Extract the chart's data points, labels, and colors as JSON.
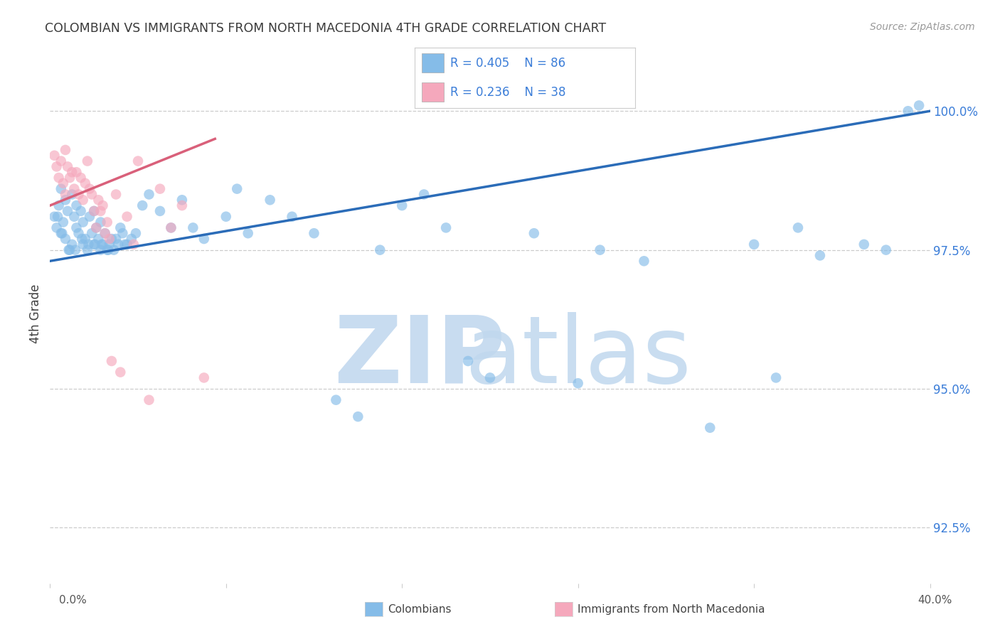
{
  "title": "COLOMBIAN VS IMMIGRANTS FROM NORTH MACEDONIA 4TH GRADE CORRELATION CHART",
  "source": "Source: ZipAtlas.com",
  "ylabel": "4th Grade",
  "ytick_values": [
    100.0,
    97.5,
    95.0,
    92.5
  ],
  "xlim": [
    0.0,
    40.0
  ],
  "ylim": [
    91.5,
    101.2
  ],
  "blue_r": 0.405,
  "blue_n": 86,
  "pink_r": 0.236,
  "pink_n": 38,
  "blue_color": "#85BCE8",
  "pink_color": "#F5A8BC",
  "blue_line_color": "#2B6CB8",
  "pink_line_color": "#D9607A",
  "legend_text_color": "#3B7DD8",
  "title_color": "#3a3a3a",
  "source_color": "#999999",
  "grid_color": "#cccccc",
  "blue_x": [
    0.2,
    0.3,
    0.4,
    0.5,
    0.5,
    0.6,
    0.7,
    0.7,
    0.8,
    0.9,
    1.0,
    1.0,
    1.1,
    1.2,
    1.2,
    1.3,
    1.4,
    1.5,
    1.5,
    1.6,
    1.7,
    1.8,
    1.9,
    2.0,
    2.0,
    2.1,
    2.2,
    2.3,
    2.3,
    2.4,
    2.5,
    2.6,
    2.7,
    2.8,
    2.9,
    3.0,
    3.1,
    3.2,
    3.3,
    3.5,
    3.7,
    3.9,
    4.2,
    4.5,
    5.0,
    5.5,
    6.0,
    6.5,
    7.0,
    8.0,
    8.5,
    9.0,
    10.0,
    11.0,
    12.0,
    13.0,
    14.0,
    15.0,
    16.0,
    17.0,
    18.0,
    19.0,
    20.0,
    22.0,
    24.0,
    25.0,
    27.0,
    30.0,
    32.0,
    33.0,
    34.0,
    35.0,
    37.0,
    38.0,
    39.0,
    39.5,
    0.35,
    0.55,
    0.85,
    1.15,
    1.45,
    1.75,
    2.05,
    2.35,
    2.65,
    3.4
  ],
  "blue_y": [
    98.1,
    97.9,
    98.3,
    97.8,
    98.6,
    98.0,
    97.7,
    98.4,
    98.2,
    97.5,
    98.5,
    97.6,
    98.1,
    97.9,
    98.3,
    97.8,
    98.2,
    97.6,
    98.0,
    97.7,
    97.5,
    98.1,
    97.8,
    97.6,
    98.2,
    97.9,
    97.7,
    97.5,
    98.0,
    97.6,
    97.8,
    97.5,
    97.6,
    97.7,
    97.5,
    97.7,
    97.6,
    97.9,
    97.8,
    97.6,
    97.7,
    97.8,
    98.3,
    98.5,
    98.2,
    97.9,
    98.4,
    97.9,
    97.7,
    98.1,
    98.6,
    97.8,
    98.4,
    98.1,
    97.8,
    94.8,
    94.5,
    97.5,
    98.3,
    98.5,
    97.9,
    95.5,
    95.2,
    97.8,
    95.1,
    97.5,
    97.3,
    94.3,
    97.6,
    95.2,
    97.9,
    97.4,
    97.6,
    97.5,
    100.0,
    100.1,
    98.1,
    97.8,
    97.5,
    97.5,
    97.7,
    97.6,
    97.6,
    97.6,
    97.5,
    97.6
  ],
  "pink_x": [
    0.2,
    0.3,
    0.4,
    0.5,
    0.6,
    0.7,
    0.7,
    0.8,
    0.9,
    1.0,
    1.1,
    1.2,
    1.3,
    1.4,
    1.5,
    1.6,
    1.7,
    1.8,
    1.9,
    2.0,
    2.1,
    2.2,
    2.3,
    2.4,
    2.5,
    2.6,
    2.7,
    2.8,
    3.0,
    3.2,
    3.5,
    3.8,
    4.0,
    4.5,
    5.0,
    5.5,
    6.0,
    7.0
  ],
  "pink_y": [
    99.2,
    99.0,
    98.8,
    99.1,
    98.7,
    99.3,
    98.5,
    99.0,
    98.8,
    98.9,
    98.6,
    98.9,
    98.5,
    98.8,
    98.4,
    98.7,
    99.1,
    98.6,
    98.5,
    98.2,
    97.9,
    98.4,
    98.2,
    98.3,
    97.8,
    98.0,
    97.7,
    95.5,
    98.5,
    95.3,
    98.1,
    97.6,
    99.1,
    94.8,
    98.6,
    97.9,
    98.3,
    95.2
  ],
  "blue_line_x0": 0.0,
  "blue_line_x1": 40.0,
  "blue_line_y0": 97.3,
  "blue_line_y1": 100.0,
  "pink_line_x0": 0.0,
  "pink_line_x1": 7.5,
  "pink_line_y0": 98.3,
  "pink_line_y1": 99.5
}
